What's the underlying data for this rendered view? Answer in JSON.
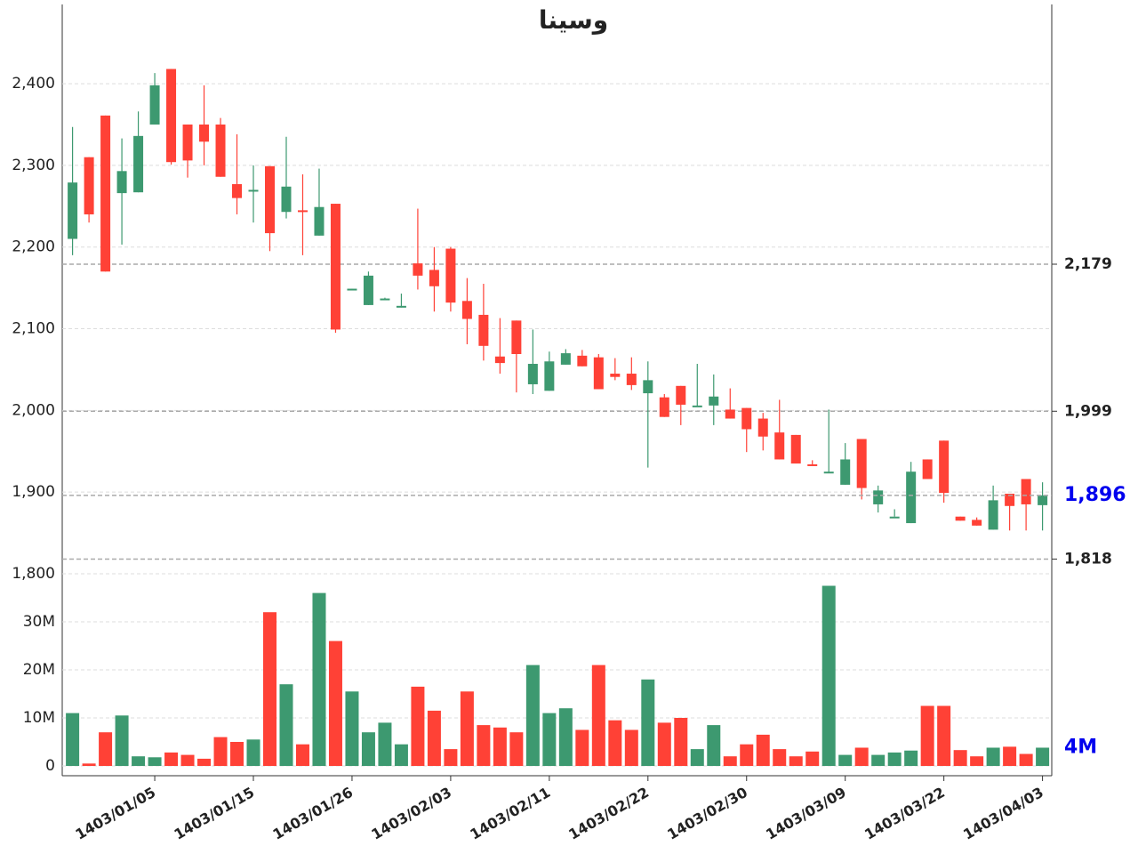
{
  "chart_data": {
    "type": "candlestick",
    "title": "وسينا",
    "categories": [
      null,
      null,
      null,
      null,
      null,
      "1403/01/05",
      null,
      null,
      null,
      null,
      null,
      "1403/01/15",
      null,
      null,
      null,
      null,
      null,
      "1403/01/26",
      null,
      null,
      null,
      null,
      null,
      "1403/02/03",
      null,
      null,
      null,
      null,
      null,
      "1403/02/11",
      null,
      null,
      null,
      null,
      null,
      "1403/02/22",
      null,
      null,
      null,
      null,
      null,
      "1403/02/30",
      null,
      null,
      null,
      null,
      null,
      "1403/03/09",
      null,
      null,
      null,
      null,
      null,
      "1403/03/22",
      null,
      null,
      null,
      null,
      null,
      "1403/04/03"
    ],
    "open": [
      2210,
      2310,
      2361,
      2266,
      2267,
      2350,
      2418,
      2350,
      2350,
      2350,
      2277,
      2269,
      2299,
      2243,
      2245,
      2214,
      2253,
      2148,
      2129,
      2137,
      2128,
      2180,
      2172,
      2198,
      2134,
      2117,
      2066,
      2110,
      2032,
      2024,
      2056,
      2067,
      2065,
      2045,
      2045,
      2021,
      2016,
      2030,
      2005,
      2006,
      2001,
      2003,
      1990,
      1973,
      1970,
      1934,
      1925,
      1909,
      1965,
      1885,
      1870,
      1862,
      1940,
      1963,
      1870,
      1866,
      1854,
      1898,
      1916,
      1884
    ],
    "high": [
      2347,
      2310,
      2361,
      2333,
      2366,
      2413,
      2418,
      2350,
      2398,
      2358,
      2338,
      2300,
      2299,
      2335,
      2289,
      2296,
      2253,
      2149,
      2170,
      2138,
      2143,
      2247,
      2200,
      2200,
      2162,
      2155,
      2113,
      2110,
      2099,
      2072,
      2075,
      2074,
      2069,
      2064,
      2065,
      2060,
      2020,
      2030,
      2057,
      2044,
      2027,
      2003,
      1997,
      2013,
      1970,
      1939,
      2001,
      1960,
      1965,
      1908,
      1879,
      1937,
      1940,
      1963,
      1870,
      1869,
      1908,
      1898,
      1916,
      1912
    ],
    "low": [
      2190,
      2230,
      2170,
      2203,
      2267,
      2350,
      2301,
      2285,
      2300,
      2286,
      2240,
      2230,
      2195,
      2235,
      2190,
      2214,
      2095,
      2148,
      2129,
      2136,
      2126,
      2148,
      2121,
      2121,
      2081,
      2061,
      2045,
      2022,
      2020,
      2024,
      2056,
      2054,
      2026,
      2037,
      2025,
      1930,
      1992,
      1982,
      2005,
      1982,
      1990,
      1949,
      1951,
      1940,
      1935,
      1932,
      1924,
      1909,
      1891,
      1875,
      1870,
      1862,
      1916,
      1887,
      1865,
      1859,
      1854,
      1853,
      1853,
      1853
    ],
    "close": [
      2279,
      2240,
      2170,
      2293,
      2336,
      2398,
      2304,
      2306,
      2329,
      2286,
      2260,
      2270,
      2217,
      2274,
      2244,
      2249,
      2099,
      2149,
      2165,
      2137,
      2128,
      2165,
      2152,
      2132,
      2112,
      2079,
      2058,
      2069,
      2057,
      2060,
      2070,
      2054,
      2026,
      2041,
      2031,
      2037,
      1992,
      2007,
      2006,
      2017,
      1990,
      1977,
      1968,
      1940,
      1935,
      1932,
      1925,
      1940,
      1905,
      1902,
      1870,
      1925,
      1916,
      1899,
      1865,
      1859,
      1890,
      1883,
      1885,
      1896
    ],
    "colors": {
      "up": "#3d9970",
      "down": "#ff4136"
    },
    "ylim": [
      1800,
      2497
    ],
    "yticks": [
      {
        "value": 1800,
        "label": "1,800"
      },
      {
        "value": 1900,
        "label": "1,900"
      },
      {
        "value": 2000,
        "label": "2,000"
      },
      {
        "value": 2100,
        "label": "2,100"
      },
      {
        "value": 2200,
        "label": "2,200"
      },
      {
        "value": 2300,
        "label": "2,300"
      },
      {
        "value": 2400,
        "label": "2,400"
      }
    ],
    "grid": true,
    "levels": [
      {
        "value": 2179,
        "label": "2,179"
      },
      {
        "value": 1999,
        "label": "1,999"
      },
      {
        "value": 1818,
        "label": "1,818"
      }
    ],
    "last_price_label": "1,896",
    "last_color": "#0000ee",
    "volume": {
      "values": [
        11000000,
        500000,
        7000000,
        10500000,
        2000000,
        1800000,
        2800000,
        2300000,
        1500000,
        6000000,
        5000000,
        5500000,
        32000000,
        17000000,
        4500000,
        36000000,
        26000000,
        15500000,
        7000000,
        9000000,
        4500000,
        16500000,
        11500000,
        3500000,
        15500000,
        8500000,
        8000000,
        7000000,
        21000000,
        11000000,
        12000000,
        7500000,
        21000000,
        9500000,
        7500000,
        18000000,
        9000000,
        10000000,
        3500000,
        8500000,
        2000000,
        4500000,
        6500000,
        3500000,
        2000000,
        3000000,
        37500000,
        2300000,
        3800000,
        2300000,
        2800000,
        3200000,
        12500000,
        12500000,
        3300000,
        2000000,
        3800000,
        4000000,
        2500000,
        3800000
      ],
      "ylim": [
        0,
        40000000
      ],
      "yticks": [
        0,
        {
          "value": 10000000,
          "label": "10M"
        },
        {
          "value": 20000000,
          "label": "20M"
        },
        {
          "value": 30000000,
          "label": "30M"
        }
      ],
      "last_label": "4M"
    }
  }
}
